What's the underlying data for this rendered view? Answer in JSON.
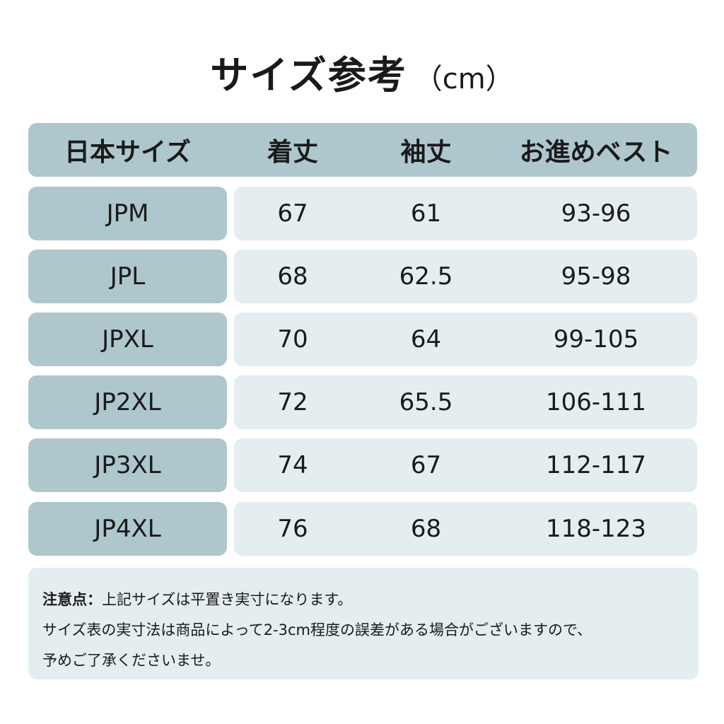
{
  "title": {
    "main": "サイズ参考",
    "unit": "（cm）"
  },
  "table": {
    "headers": [
      "日本サイズ",
      "着丈",
      "袖丈",
      "お進めベスト"
    ],
    "rows": [
      {
        "size": "JPM",
        "length": "67",
        "sleeve": "61",
        "vest": "93-96"
      },
      {
        "size": "JPL",
        "length": "68",
        "sleeve": "62.5",
        "vest": "95-98"
      },
      {
        "size": "JPXL",
        "length": "70",
        "sleeve": "64",
        "vest": "99-105"
      },
      {
        "size": "JP2XL",
        "length": "72",
        "sleeve": "65.5",
        "vest": "106-111"
      },
      {
        "size": "JP3XL",
        "length": "74",
        "sleeve": "67",
        "vest": "112-117"
      },
      {
        "size": "JP4XL",
        "length": "76",
        "sleeve": "68",
        "vest": "118-123"
      }
    ]
  },
  "note": {
    "label": "注意点：",
    "line1": "上記サイズは平置き実寸になります。",
    "line2": "サイズ表の実寸法は商品によって2-3cm程度の誤差がある場合がございますので、",
    "line3": "予めご了承くださいませ。"
  },
  "colors": {
    "header_bg": "#aec7cd",
    "value_bg": "#e4edef",
    "text": "#1a1a1a"
  }
}
